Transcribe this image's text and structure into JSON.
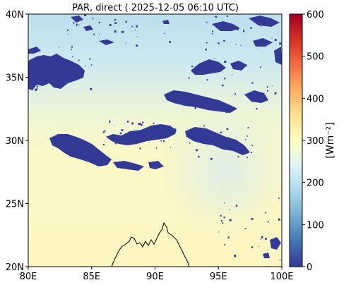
{
  "map": {
    "title": "PAR, direct ( 2025-12-05 06:10 UTC)",
    "lon_ticks": [
      {
        "value": 80,
        "label": "80E"
      },
      {
        "value": 85,
        "label": "85E"
      },
      {
        "value": 90,
        "label": "90E"
      },
      {
        "value": 95,
        "label": "95E"
      },
      {
        "value": 100,
        "label": "100E"
      }
    ],
    "lat_ticks": [
      {
        "value": 20,
        "label": "20N"
      },
      {
        "value": 25,
        "label": "25N"
      },
      {
        "value": 30,
        "label": "30N"
      },
      {
        "value": 35,
        "label": "35N"
      },
      {
        "value": 40,
        "label": "40N"
      }
    ],
    "extent": {
      "lon": [
        80,
        100
      ],
      "lat": [
        20,
        40
      ]
    }
  },
  "colorbar": {
    "label": "[Wm⁻²]",
    "range": [
      0,
      600
    ],
    "colormap": "RdYlBu_r",
    "ticks": [
      {
        "value": 0,
        "label": "0"
      },
      {
        "value": 100,
        "label": "100"
      },
      {
        "value": 200,
        "label": "200"
      },
      {
        "value": 300,
        "label": "300"
      },
      {
        "value": 400,
        "label": "400"
      },
      {
        "value": 500,
        "label": "500"
      },
      {
        "value": 600,
        "label": "600"
      }
    ]
  },
  "colors": {
    "clear_north": "#c4e3ef",
    "clear_south": "#fdf8c6",
    "cloud": "#333a95",
    "coastline": "#000000"
  }
}
